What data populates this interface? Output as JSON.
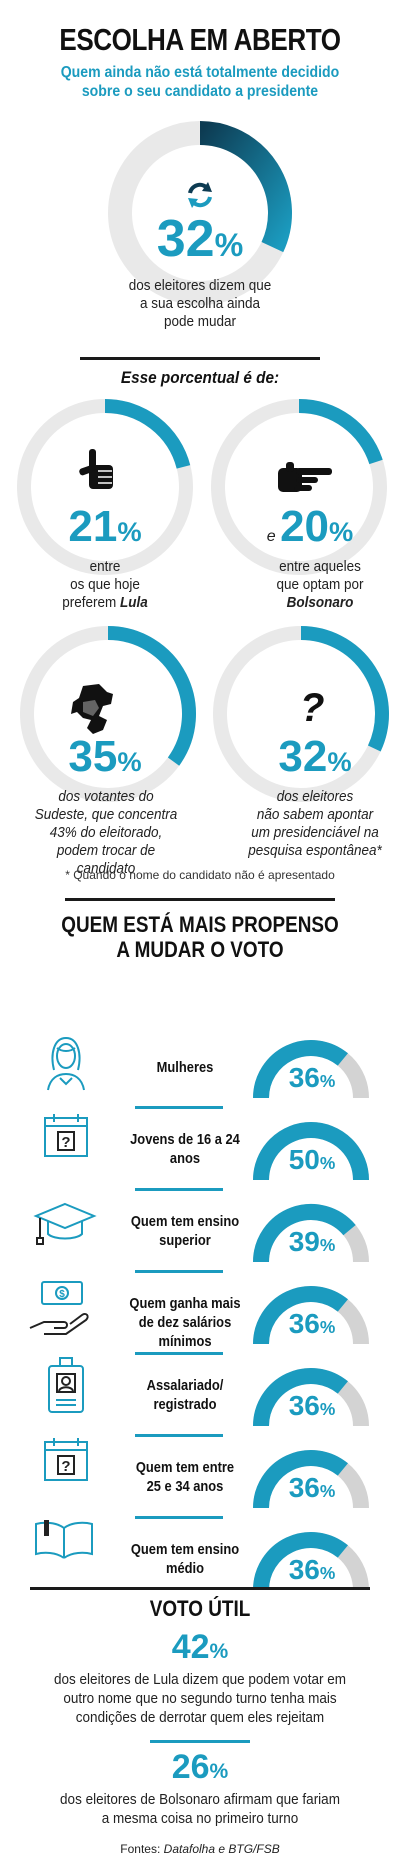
{
  "header": {
    "title": "ESCOLHA EM ABERTO",
    "subtitle": "Quem ainda não está totalmente decidido sobre o seu candidato a presidente"
  },
  "main": {
    "value": "32",
    "caption": "dos eleitores dizem que a sua escolha ainda pode mudar",
    "icon": "refresh-icon"
  },
  "breakdown": {
    "heading": "Esse porcentual é de:",
    "items": [
      {
        "value": "21",
        "prefix": "",
        "caption_line1": "entre",
        "caption_line2": "os que hoje",
        "caption_line3": "preferem",
        "caption_emph": "Lula",
        "icon": "thumbs-up-icon"
      },
      {
        "value": "20",
        "prefix": "e",
        "caption_line1": "entre aqueles",
        "caption_line2": "que optam por",
        "caption_line3": "",
        "caption_emph": "Bolsonaro",
        "icon": "pointing-hand-icon"
      },
      {
        "value": "35",
        "prefix": "",
        "caption": "dos votantes do Sudeste, que concentra 43% do eleitorado, podem trocar de candidato",
        "icon": "map-icon"
      },
      {
        "value": "32",
        "prefix": "",
        "caption_line1": "dos eleitores",
        "caption_line2": "não sabem apontar",
        "caption_line3": "um presidenciável na",
        "caption_italic": "pesquisa espontânea*",
        "icon": "question-mark-icon"
      }
    ],
    "footnote": "* Quando o nome do candidato não é apresentado"
  },
  "profile": {
    "heading_line1": "QUEM ESTÁ MAIS PROPENSO",
    "heading_line2": "A MUDAR O VOTO",
    "rows": [
      {
        "label": "Mulheres",
        "value": "36",
        "icon": "woman-icon"
      },
      {
        "label": "Jovens de 16 a 24 anos",
        "value": "50",
        "icon": "calendar-question-icon"
      },
      {
        "label": "Quem tem ensino superior",
        "value": "39",
        "icon": "graduation-cap-icon"
      },
      {
        "label": "Quem ganha mais de dez salários mínimos",
        "value": "36",
        "icon": "money-hand-icon"
      },
      {
        "label": "Assalariado/ registrado",
        "value": "36",
        "icon": "id-badge-icon"
      },
      {
        "label": "Quem tem entre 25 e 34 anos",
        "value": "36",
        "icon": "calendar-question-icon"
      },
      {
        "label": "Quem tem ensino médio",
        "value": "36",
        "icon": "book-icon"
      }
    ]
  },
  "voto_util": {
    "heading": "VOTO ÚTIL",
    "lula_value": "42",
    "lula_caption": "dos eleitores de Lula dizem que podem votar em outro nome que no segundo turno tenha mais condições de derrotar quem eles rejeitam",
    "bolsonaro_value": "26",
    "bolsonaro_caption": "dos eleitores de Bolsonaro afirmam que fariam a mesma coisa no primeiro turno"
  },
  "sources": {
    "prefix": "Fontes:",
    "names": "Datafolha e BTG/FSB"
  },
  "colors": {
    "accent": "#1b9bbf",
    "dark": "#0d3b52",
    "track": "#e9e9e9",
    "track_gray": "#d3d3d3"
  },
  "chart_data": [
    {
      "type": "pie",
      "values": [
        32
      ],
      "unit": "%"
    },
    {
      "type": "pie",
      "categories": [
        "Lula",
        "Bolsonaro",
        "Sudeste",
        "Pesquisa espontânea"
      ],
      "values": [
        21,
        20,
        35,
        32
      ],
      "unit": "%"
    },
    {
      "type": "bar",
      "categories": [
        "Mulheres",
        "Jovens de 16 a 24 anos",
        "Quem tem ensino superior",
        "Quem ganha mais de dez salários mínimos",
        "Assalariado/ registrado",
        "Quem tem entre 25 e 34 anos",
        "Quem tem ensino médio"
      ],
      "values": [
        36,
        50,
        39,
        36,
        36,
        36,
        36
      ],
      "unit": "%"
    },
    {
      "type": "bar",
      "categories": [
        "Lula",
        "Bolsonaro"
      ],
      "values": [
        42,
        26
      ],
      "unit": "%"
    }
  ]
}
